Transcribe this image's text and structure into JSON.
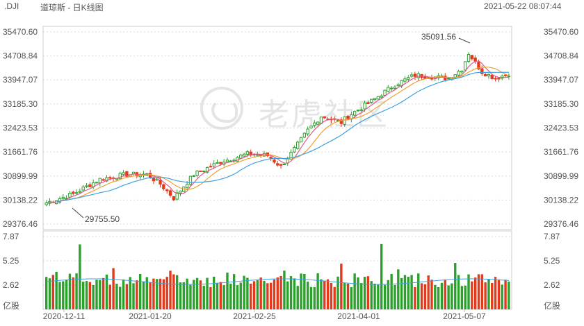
{
  "header": {
    "symbol": ".DJI",
    "title": "道琼斯 - 日K线图",
    "timestamp": "2021-05-22 08:07:44"
  },
  "watermark": {
    "text": "老虎社区"
  },
  "colors": {
    "up": "#2ca02c",
    "down": "#e23a1a",
    "ma5": "#e05a8a",
    "ma10": "#f0a030",
    "ma20": "#3ea0e0",
    "grid": "#d8d8d8"
  },
  "chart_data": {
    "type": "candlestick",
    "title": "道琼斯 - 日K线图",
    "price_axis": {
      "ticks": [
        35470.6,
        34708.84,
        33947.07,
        33185.3,
        32423.53,
        31661.76,
        30899.99,
        30138.22,
        29376.46
      ],
      "tick_labels": [
        "35470.60",
        "34708.84",
        "33947.07",
        "33185.30",
        "32423.53",
        "31661.76",
        "30899.99",
        "30138.22",
        "29376.46"
      ]
    },
    "volume_axis": {
      "ticks": [
        7.87,
        5.25,
        2.62
      ],
      "tick_labels": [
        "7.87",
        "5.25",
        "2.62"
      ],
      "unit": "亿股"
    },
    "x_tick_labels": [
      "2020-12-11",
      "2021-01-20",
      "2021-02-25",
      "2021-04-01",
      "2021-05-07"
    ],
    "annotations": {
      "high_label": "35091.56",
      "low_label": "29755.50"
    },
    "series": [
      "up/down candles",
      "moving average lines",
      "volume bars"
    ]
  }
}
